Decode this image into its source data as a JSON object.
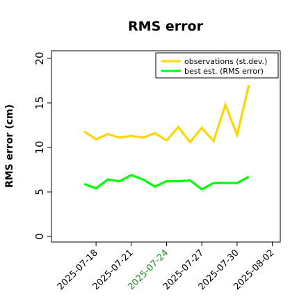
{
  "chart_data": {
    "type": "line",
    "title": "RMS error",
    "ylabel": "RMS error (cm)",
    "xlabel": "",
    "ylim": [
      0,
      21
    ],
    "y_ticks": [
      "0",
      "5",
      "10",
      "15",
      "20"
    ],
    "x_tick_labels": [
      "2025-07-18",
      "2025-07-21",
      "2025-07-24",
      "2025-07-27",
      "2025-07-30",
      "2025-08-02"
    ],
    "x_tick_colors": [
      "#000000",
      "#000000",
      "#228b22",
      "#000000",
      "#000000",
      "#000000"
    ],
    "x_tick_days": [
      18,
      21,
      24,
      27,
      30,
      33
    ],
    "legend_position": "top-right",
    "grid": false,
    "x": [
      17,
      18,
      19,
      20,
      21,
      22,
      23,
      24,
      25,
      26,
      27,
      28,
      29,
      30,
      31
    ],
    "series": [
      {
        "name": "observations (st.dev.)",
        "color": "#ffd700",
        "values": [
          11.8,
          10.9,
          11.5,
          11.1,
          11.3,
          11.1,
          11.6,
          10.8,
          12.3,
          10.6,
          12.2,
          10.7,
          14.8,
          11.4,
          17.0
        ]
      },
      {
        "name": "best est. (RMS error)",
        "color": "#00ff00",
        "values": [
          5.9,
          5.4,
          6.4,
          6.2,
          6.9,
          6.4,
          5.6,
          6.2,
          6.2,
          6.3,
          5.3,
          6.0,
          6.0,
          6.0,
          6.7
        ]
      }
    ]
  }
}
